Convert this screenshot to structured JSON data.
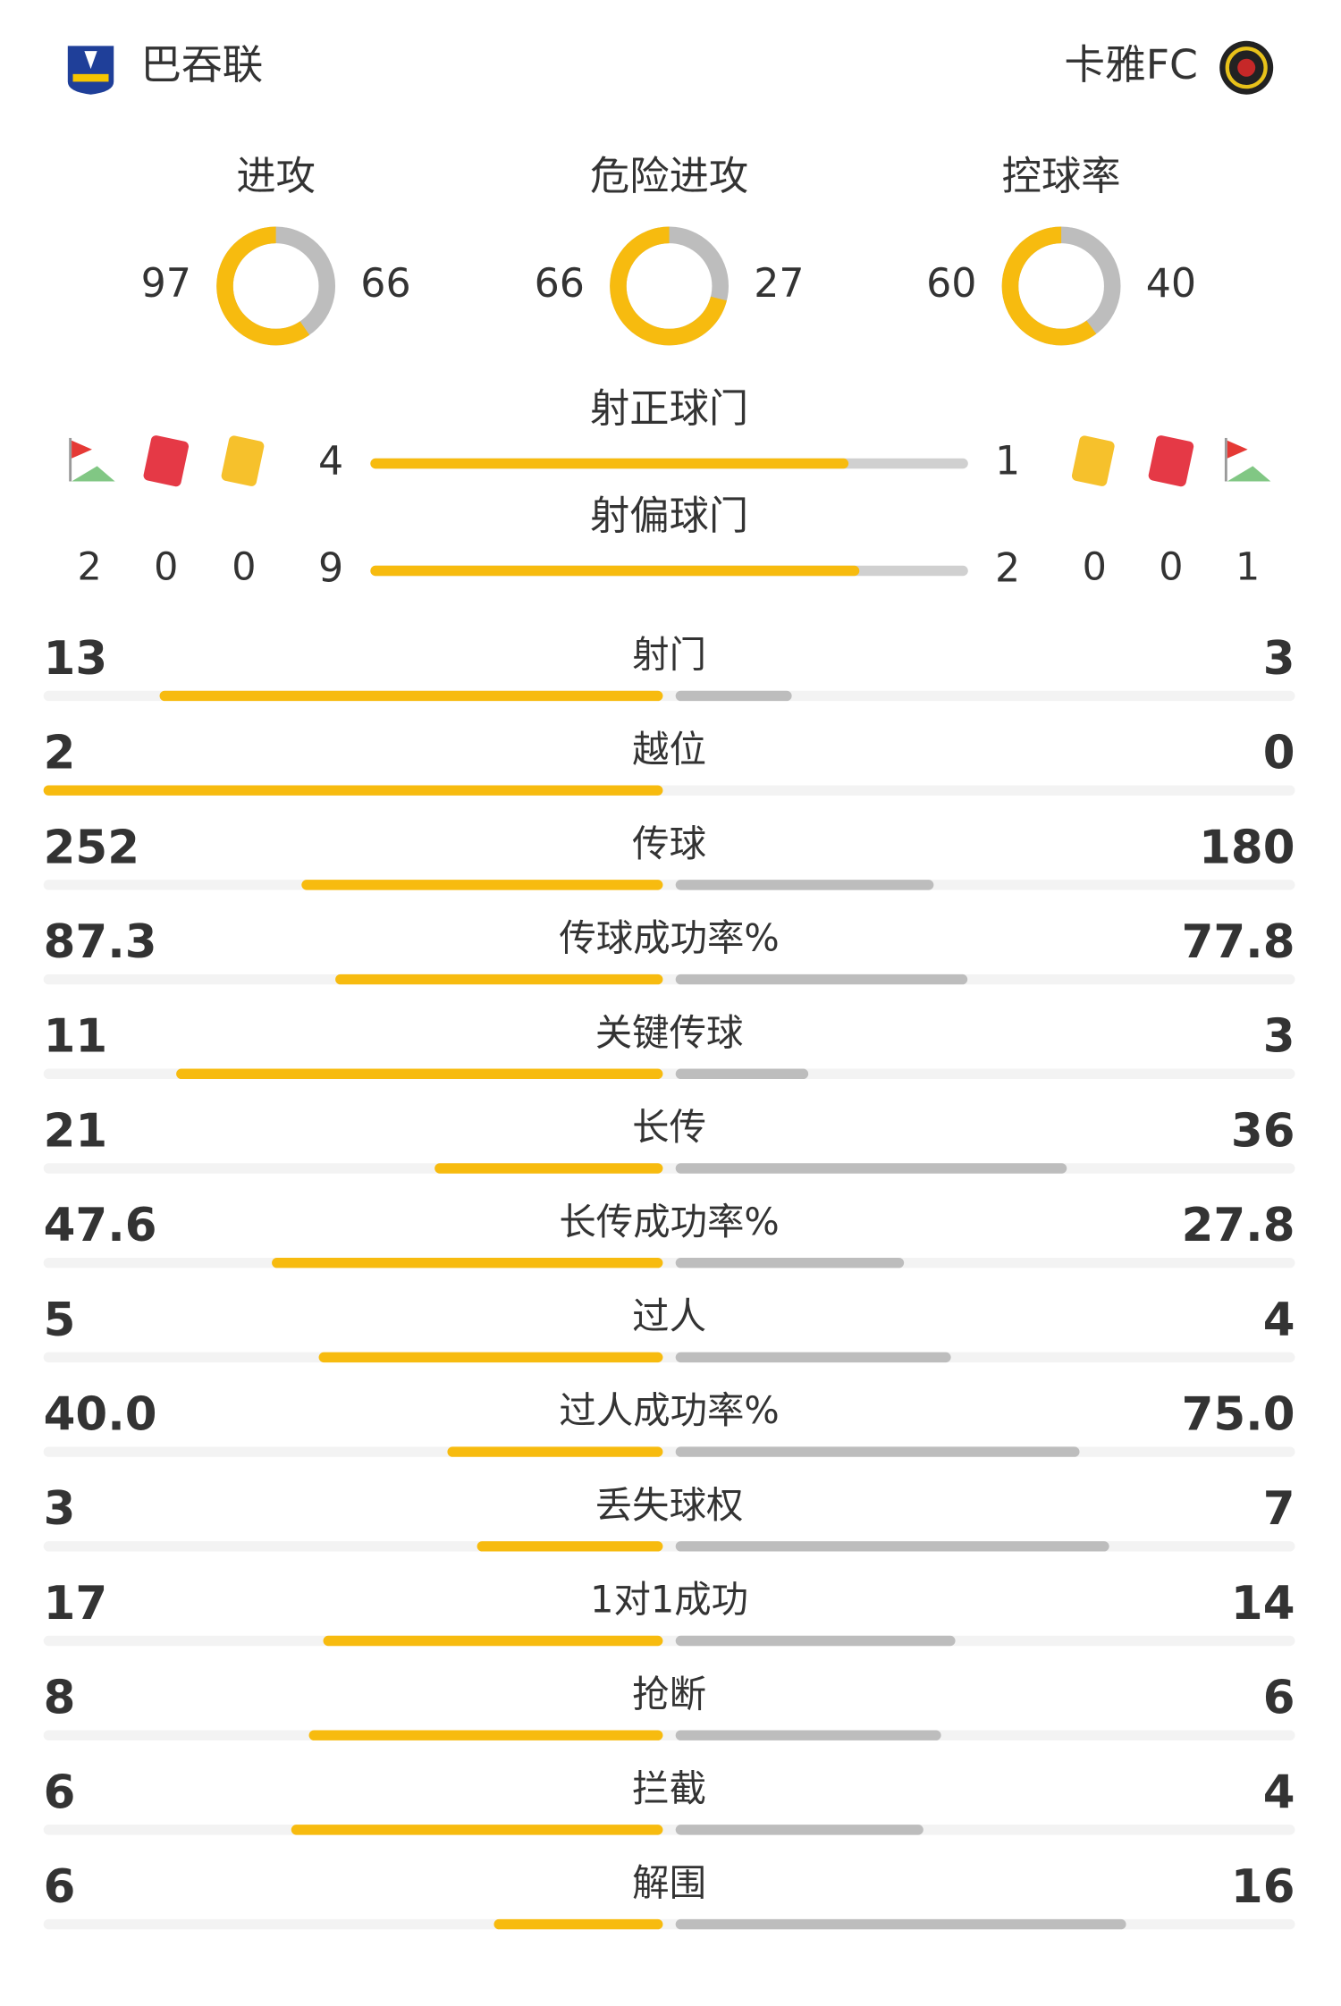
{
  "home": {
    "name": "巴吞联",
    "corners": 2,
    "red_cards": 0,
    "yellow_cards": 0
  },
  "away": {
    "name": "卡雅FC",
    "corners": 1,
    "red_cards": 0,
    "yellow_cards": 0
  },
  "rings": [
    {
      "label": "进攻",
      "home": 97,
      "away": 66
    },
    {
      "label": "危险进攻",
      "home": 66,
      "away": 27
    },
    {
      "label": "控球率",
      "home": 60,
      "away": 40
    }
  ],
  "shots": [
    {
      "label": "射正球门",
      "home": 4,
      "away": 1
    },
    {
      "label": "射偏球门",
      "home": 9,
      "away": 2
    }
  ],
  "stats": [
    {
      "label": "射门",
      "home": 13,
      "away": 3
    },
    {
      "label": "越位",
      "home": 2,
      "away": 0
    },
    {
      "label": "传球",
      "home": 252,
      "away": 180
    },
    {
      "label": "传球成功率%",
      "home": 87.3,
      "away": 77.8
    },
    {
      "label": "关键传球",
      "home": 11,
      "away": 3
    },
    {
      "label": "长传",
      "home": 21,
      "away": 36
    },
    {
      "label": "长传成功率%",
      "home": 47.6,
      "away": 27.8
    },
    {
      "label": "过人",
      "home": 5,
      "away": 4
    },
    {
      "label": "过人成功率%",
      "home": {
        "value": 40,
        "label": "40.0"
      },
      "away": {
        "value": 75,
        "label": "75.0"
      }
    },
    {
      "label": "丢失球权",
      "home": 3,
      "away": 7
    },
    {
      "label": "1对1成功",
      "home": 17,
      "away": 14
    },
    {
      "label": "抢断",
      "home": 8,
      "away": 6
    },
    {
      "label": "拦截",
      "home": 6,
      "away": 4
    },
    {
      "label": "解围",
      "home": 6,
      "away": 16
    }
  ]
}
